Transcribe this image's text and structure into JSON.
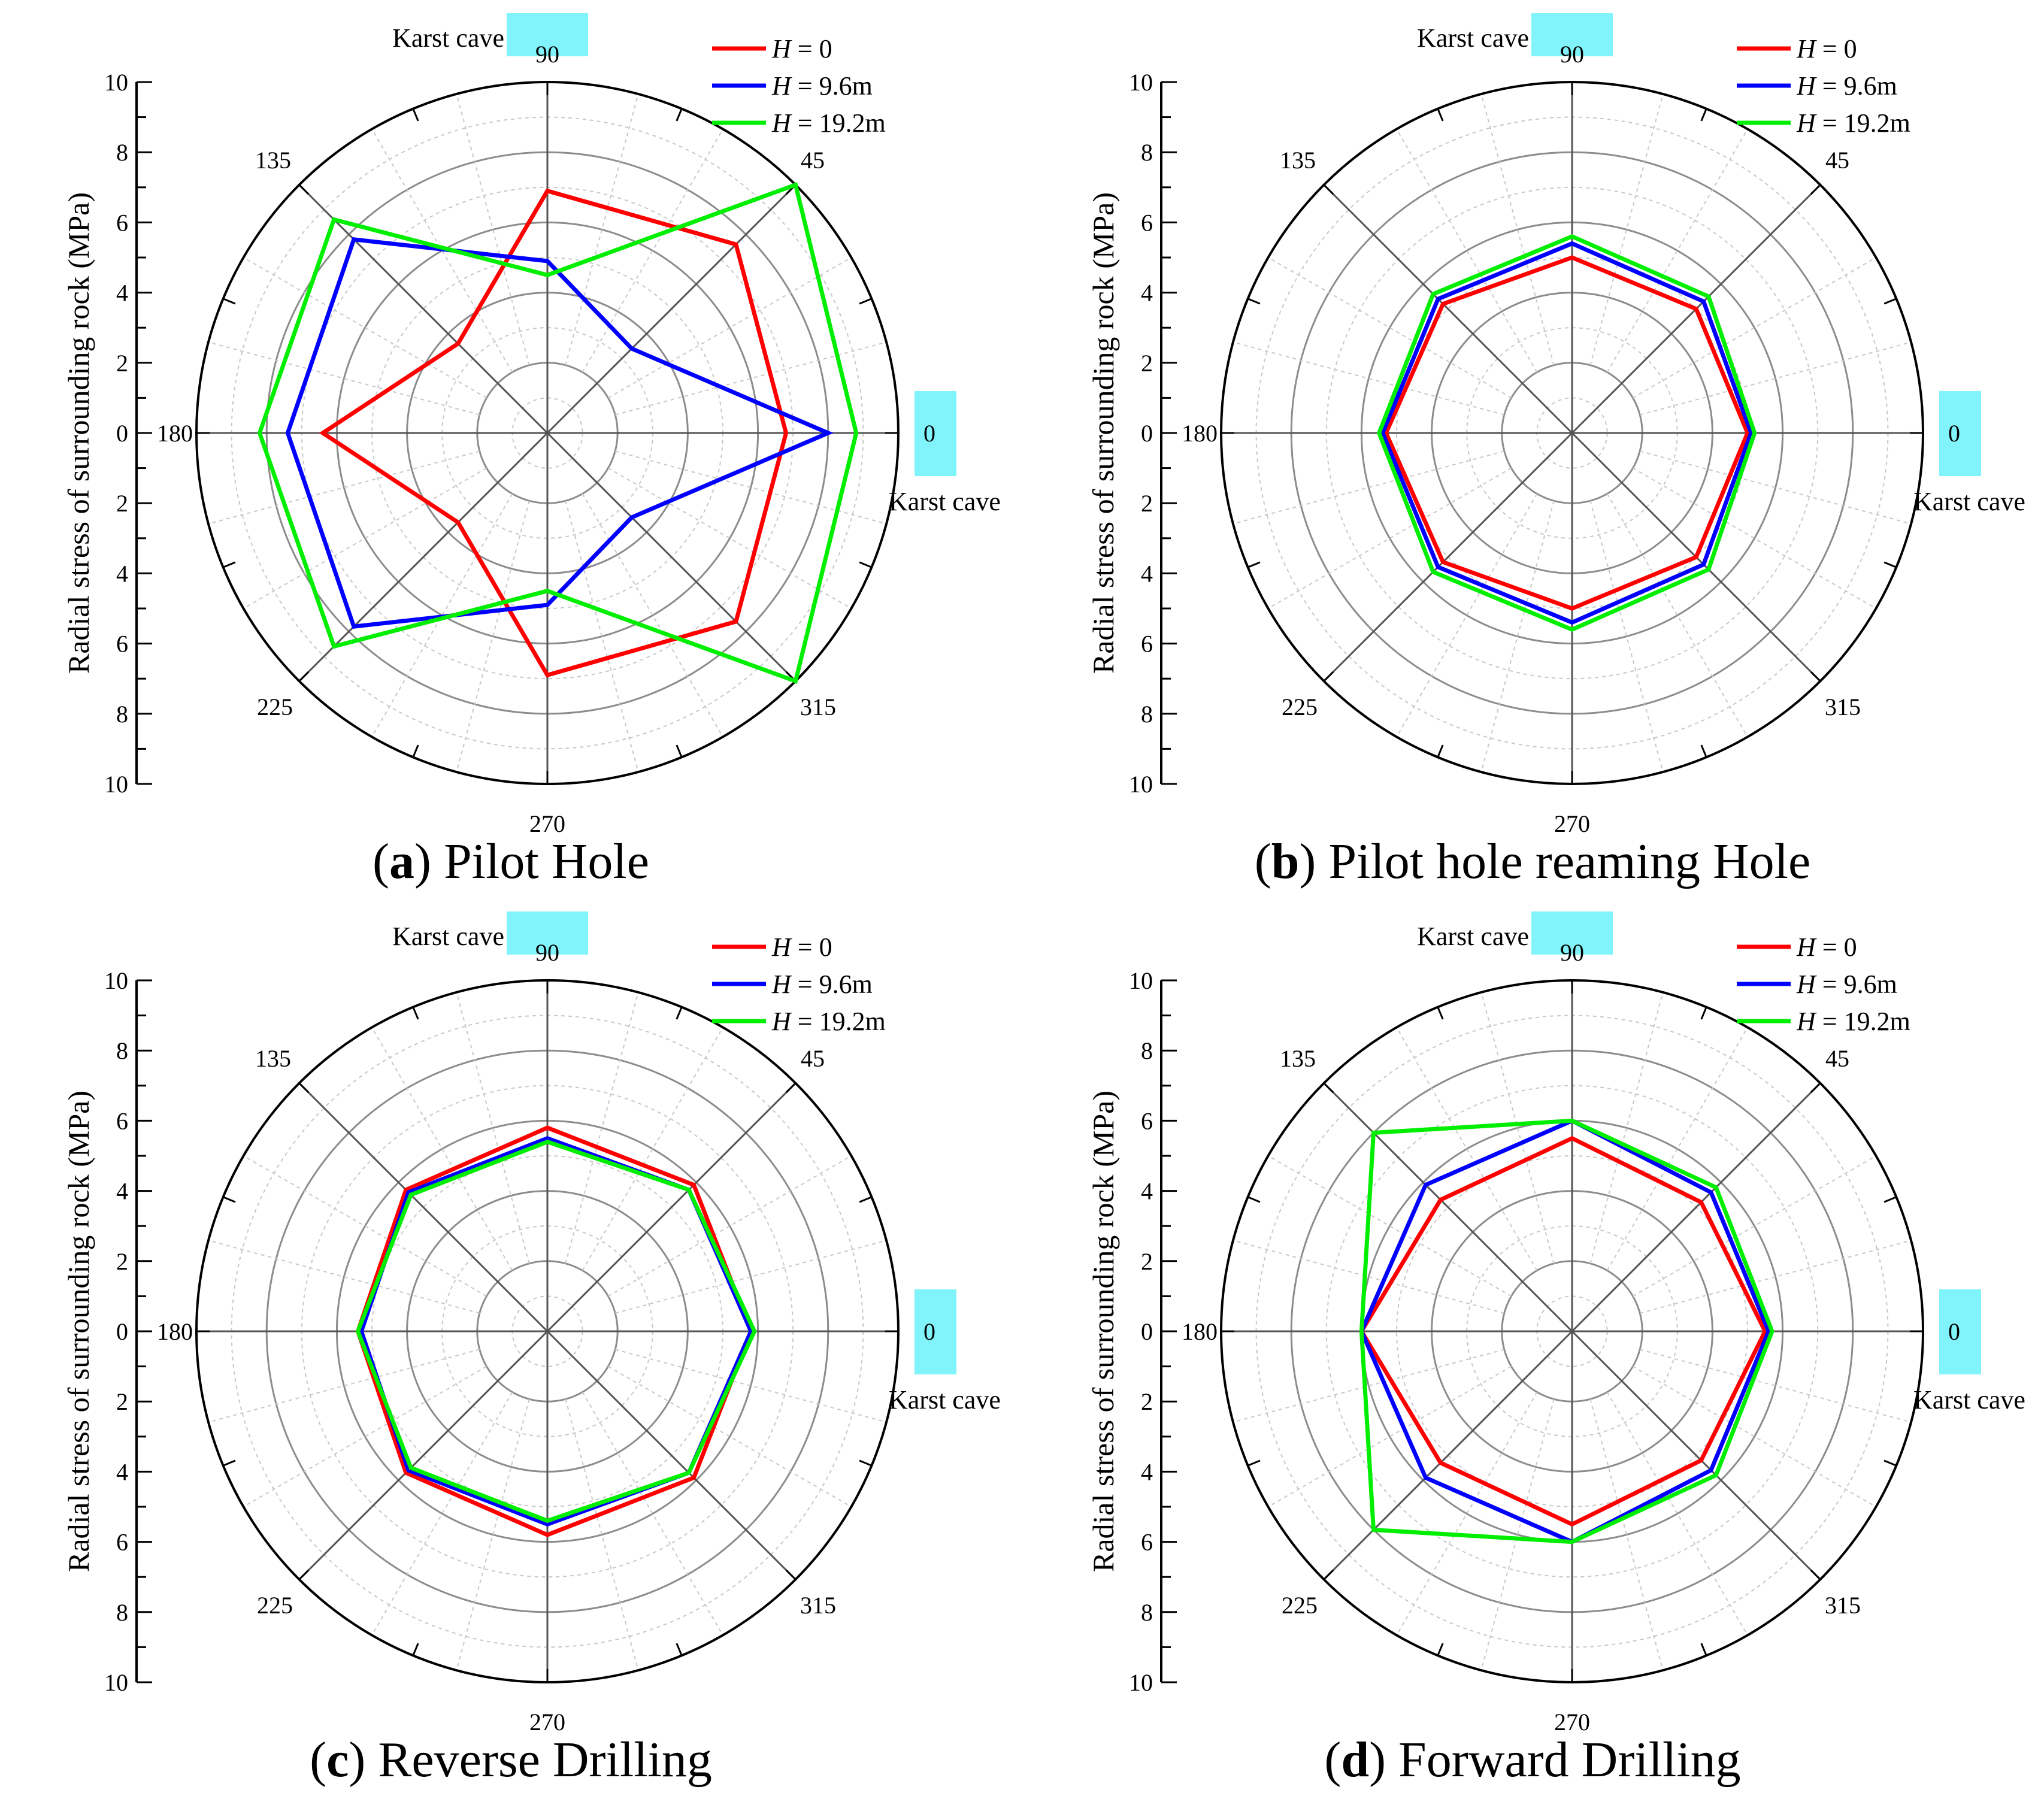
{
  "figure": {
    "yaxis_label": "Radial stress of surrounding rock (MPa)",
    "karst_label": "Karst cave",
    "legend_prefix": "H",
    "colors": {
      "red": "#ff0000",
      "blue": "#0000ff",
      "green": "#00ee00",
      "cyan": "#80f4fa"
    }
  },
  "chart_data": [
    {
      "type": "polar-line",
      "panel": "a",
      "caption_letter": "a",
      "caption_text": "Pilot Hole",
      "radial_axis": {
        "label": "Radial stress of surrounding rock (MPa)",
        "range": [
          0,
          10
        ],
        "ticks": [
          "10",
          "8",
          "6",
          "4",
          "2",
          "0",
          "2",
          "4",
          "6",
          "8",
          "10"
        ]
      },
      "angular_labels": [
        "0",
        "45",
        "90",
        "135",
        "180",
        "225",
        "270",
        "315"
      ],
      "angles": [
        0,
        45,
        90,
        135,
        180,
        225,
        270,
        315
      ],
      "annotations": [
        "Karst cave",
        "Karst cave"
      ],
      "series": [
        {
          "name": "H = 0",
          "legend_value": "= 0",
          "color": "#ff0000",
          "values": [
            6.8,
            7.6,
            6.9,
            3.6,
            6.4,
            3.6,
            6.9,
            7.6
          ]
        },
        {
          "name": "H = 9.6m",
          "legend_value": "= 9.6m",
          "color": "#0000ff",
          "values": [
            8.0,
            3.4,
            4.9,
            7.8,
            7.4,
            7.8,
            4.9,
            3.4
          ]
        },
        {
          "name": "H = 19.2m",
          "legend_value": "= 19.2m",
          "color": "#00ee00",
          "values": [
            8.8,
            10.0,
            4.5,
            8.6,
            8.2,
            8.6,
            4.5,
            10.0
          ]
        }
      ]
    },
    {
      "type": "polar-line",
      "panel": "b",
      "caption_letter": "b",
      "caption_text": "Pilot hole reaming Hole",
      "radial_axis": {
        "label": "Radial stress of surrounding rock (MPa)",
        "range": [
          0,
          10
        ],
        "ticks": [
          "10",
          "8",
          "6",
          "4",
          "2",
          "0",
          "2",
          "4",
          "6",
          "8",
          "10"
        ]
      },
      "angular_labels": [
        "0",
        "45",
        "90",
        "135",
        "180",
        "225",
        "270",
        "315"
      ],
      "angles": [
        0,
        45,
        90,
        135,
        180,
        225,
        270,
        315
      ],
      "annotations": [
        "Karst cave",
        "Karst cave"
      ],
      "series": [
        {
          "name": "H = 0",
          "legend_value": "= 0",
          "color": "#ff0000",
          "values": [
            5.0,
            5.0,
            5.0,
            5.2,
            5.3,
            5.2,
            5.0,
            5.0
          ]
        },
        {
          "name": "H = 9.6m",
          "legend_value": "= 9.6m",
          "color": "#0000ff",
          "values": [
            5.1,
            5.3,
            5.4,
            5.4,
            5.4,
            5.4,
            5.4,
            5.3
          ]
        },
        {
          "name": "H = 19.2m",
          "legend_value": "= 19.2m",
          "color": "#00ee00",
          "values": [
            5.2,
            5.5,
            5.6,
            5.6,
            5.5,
            5.6,
            5.6,
            5.5
          ]
        }
      ]
    },
    {
      "type": "polar-line",
      "panel": "c",
      "caption_letter": "c",
      "caption_text": "Reverse Drilling",
      "radial_axis": {
        "label": "Radial stress of surrounding rock (MPa)",
        "range": [
          0,
          10
        ],
        "ticks": [
          "10",
          "8",
          "6",
          "4",
          "2",
          "0",
          "2",
          "4",
          "6",
          "8",
          "10"
        ]
      },
      "angular_labels": [
        "0",
        "45",
        "90",
        "135",
        "180",
        "225",
        "270",
        "315"
      ],
      "angles": [
        0,
        45,
        90,
        135,
        180,
        225,
        270,
        315
      ],
      "annotations": [
        "Karst cave",
        "Karst cave"
      ],
      "series": [
        {
          "name": "H = 0",
          "legend_value": "= 0",
          "color": "#ff0000",
          "values": [
            5.8,
            5.9,
            5.8,
            5.7,
            5.4,
            5.7,
            5.8,
            5.9
          ]
        },
        {
          "name": "H = 9.6m",
          "legend_value": "= 9.6m",
          "color": "#0000ff",
          "values": [
            5.8,
            5.7,
            5.5,
            5.6,
            5.3,
            5.6,
            5.5,
            5.7
          ]
        },
        {
          "name": "H = 19.2m",
          "legend_value": "= 19.2m",
          "color": "#00ee00",
          "values": [
            5.9,
            5.7,
            5.4,
            5.5,
            5.4,
            5.5,
            5.4,
            5.7
          ]
        }
      ]
    },
    {
      "type": "polar-line",
      "panel": "d",
      "caption_letter": "d",
      "caption_text": "Forward Drilling",
      "radial_axis": {
        "label": "Radial stress of surrounding rock (MPa)",
        "range": [
          0,
          10
        ],
        "ticks": [
          "10",
          "8",
          "6",
          "4",
          "2",
          "0",
          "2",
          "4",
          "6",
          "8",
          "10"
        ]
      },
      "angular_labels": [
        "0",
        "45",
        "90",
        "135",
        "180",
        "225",
        "270",
        "315"
      ],
      "angles": [
        0,
        45,
        90,
        135,
        180,
        225,
        270,
        315
      ],
      "annotations": [
        "Karst cave",
        "Karst cave"
      ],
      "series": [
        {
          "name": "H = 0",
          "legend_value": "= 0",
          "color": "#ff0000",
          "values": [
            5.5,
            5.2,
            5.5,
            5.3,
            6.0,
            5.3,
            5.5,
            5.2
          ]
        },
        {
          "name": "H = 9.6m",
          "legend_value": "= 9.6m",
          "color": "#0000ff",
          "values": [
            5.6,
            5.6,
            6.0,
            5.9,
            6.0,
            5.9,
            6.0,
            5.6
          ]
        },
        {
          "name": "H = 19.2m",
          "legend_value": "= 19.2m",
          "color": "#00ee00",
          "values": [
            5.7,
            5.8,
            6.0,
            8.0,
            6.0,
            8.0,
            6.0,
            5.8
          ]
        }
      ]
    }
  ]
}
